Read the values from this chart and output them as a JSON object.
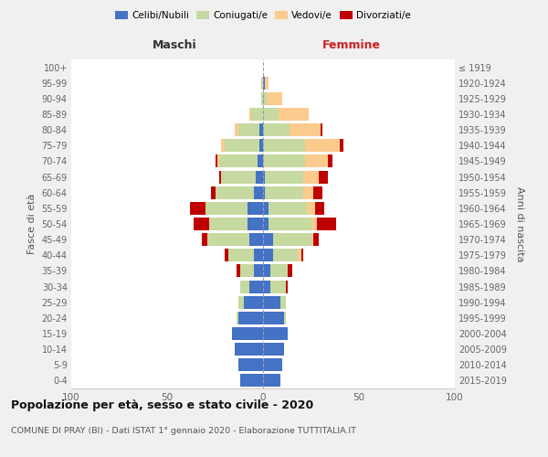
{
  "age_groups": [
    "0-4",
    "5-9",
    "10-14",
    "15-19",
    "20-24",
    "25-29",
    "30-34",
    "35-39",
    "40-44",
    "45-49",
    "50-54",
    "55-59",
    "60-64",
    "65-69",
    "70-74",
    "75-79",
    "80-84",
    "85-89",
    "90-94",
    "95-99",
    "100+"
  ],
  "birth_years": [
    "2015-2019",
    "2010-2014",
    "2005-2009",
    "2000-2004",
    "1995-1999",
    "1990-1994",
    "1985-1989",
    "1980-1984",
    "1975-1979",
    "1970-1974",
    "1965-1969",
    "1960-1964",
    "1955-1959",
    "1950-1954",
    "1945-1949",
    "1940-1944",
    "1935-1939",
    "1930-1934",
    "1925-1929",
    "1920-1924",
    "≤ 1919"
  ],
  "males": {
    "celibe": [
      12,
      13,
      15,
      16,
      13,
      10,
      7,
      5,
      5,
      7,
      8,
      8,
      5,
      4,
      3,
      2,
      2,
      0,
      0,
      0,
      0
    ],
    "coniugato": [
      0,
      0,
      0,
      0,
      1,
      3,
      5,
      7,
      13,
      22,
      20,
      22,
      20,
      18,
      20,
      18,
      11,
      6,
      1,
      1,
      0
    ],
    "vedovo": [
      0,
      0,
      0,
      0,
      0,
      0,
      0,
      0,
      0,
      0,
      0,
      0,
      0,
      0,
      1,
      2,
      2,
      1,
      0,
      0,
      0
    ],
    "divorziato": [
      0,
      0,
      0,
      0,
      0,
      0,
      0,
      2,
      2,
      3,
      8,
      8,
      2,
      1,
      1,
      0,
      0,
      0,
      0,
      0,
      0
    ]
  },
  "females": {
    "nubile": [
      9,
      10,
      11,
      13,
      11,
      9,
      4,
      4,
      5,
      5,
      3,
      3,
      1,
      1,
      0,
      0,
      0,
      0,
      0,
      1,
      0
    ],
    "coniugata": [
      0,
      0,
      0,
      0,
      1,
      3,
      8,
      9,
      13,
      20,
      22,
      20,
      20,
      20,
      22,
      22,
      14,
      8,
      2,
      0,
      0
    ],
    "vedova": [
      0,
      0,
      0,
      0,
      0,
      0,
      0,
      0,
      2,
      1,
      3,
      4,
      5,
      8,
      12,
      18,
      16,
      16,
      8,
      2,
      0
    ],
    "divorziata": [
      0,
      0,
      0,
      0,
      0,
      0,
      1,
      2,
      1,
      3,
      10,
      5,
      5,
      5,
      2,
      2,
      1,
      0,
      0,
      0,
      0
    ]
  },
  "colors": {
    "celibe": "#4472C4",
    "coniugato": "#C5D9A0",
    "vedovo": "#FBCB8E",
    "divorziato": "#C00000"
  },
  "title": "Popolazione per età, sesso e stato civile - 2020",
  "subtitle": "COMUNE DI PRAY (BI) - Dati ISTAT 1° gennaio 2020 - Elaborazione TUTTITALIA.IT",
  "label_maschi": "Maschi",
  "label_femmine": "Femmine",
  "ylabel_left": "Fasce di età",
  "ylabel_right": "Anni di nascita",
  "legend_labels": [
    "Celibi/Nubili",
    "Coniugati/e",
    "Vedovi/e",
    "Divorziati/e"
  ],
  "xlim": 100,
  "bg_color": "#f0f0f0",
  "plot_bg": "#ffffff"
}
